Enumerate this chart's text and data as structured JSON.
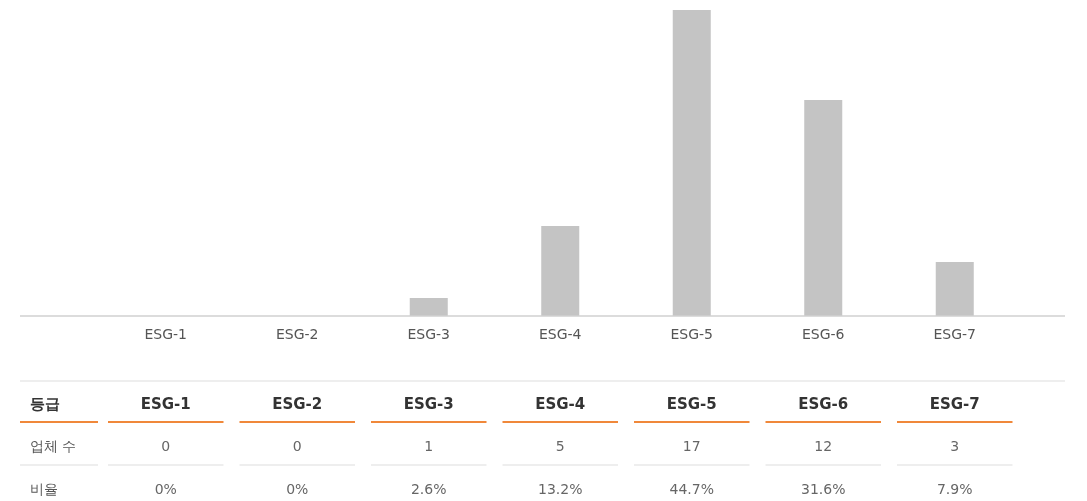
{
  "chart_data": {
    "type": "bar",
    "categories": [
      "ESG-1",
      "ESG-2",
      "ESG-3",
      "ESG-4",
      "ESG-5",
      "ESG-6",
      "ESG-7"
    ],
    "values": [
      0,
      0,
      1,
      5,
      17,
      12,
      3
    ],
    "color": "#c4c4c4",
    "data_labels": true,
    "annotations": [
      "등급",
      "업체 수",
      "비율",
      "0%",
      "0%",
      "2.6%",
      "13.2%",
      "44.7%",
      "31.6%",
      "7.9%"
    ]
  }
}
